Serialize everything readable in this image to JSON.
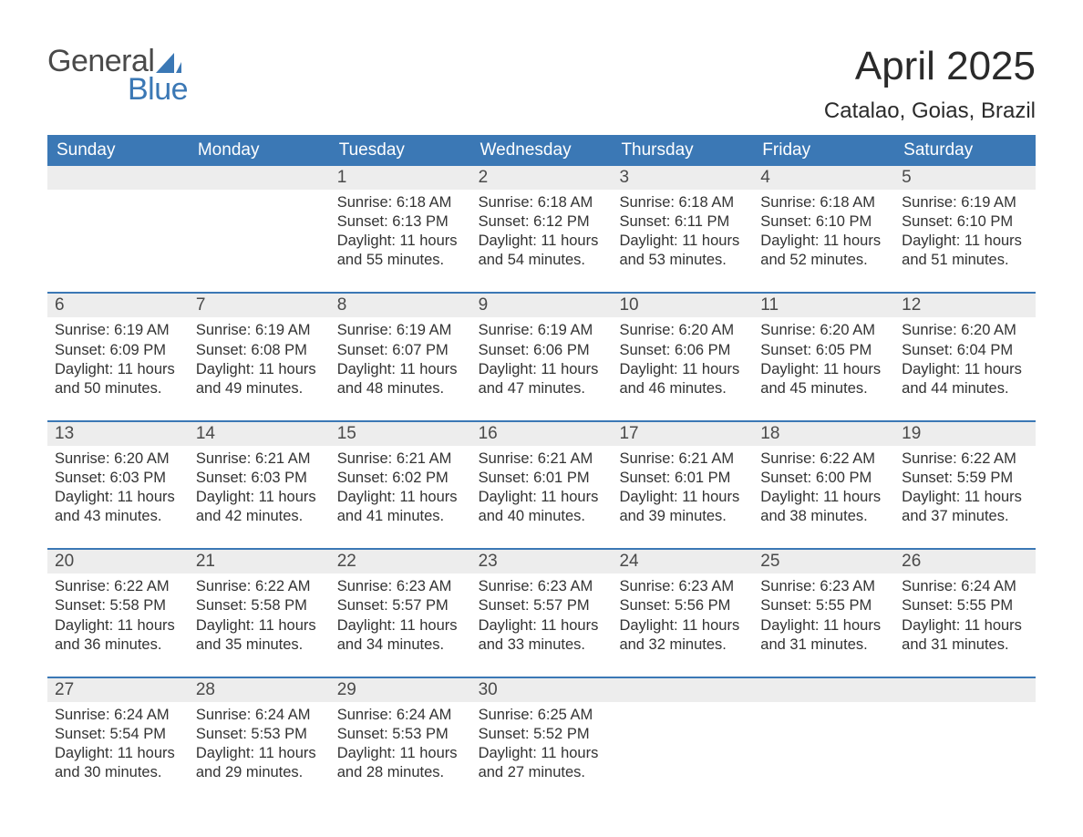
{
  "brand": {
    "word1": "General",
    "word2": "Blue",
    "text_color": "#4a4a4a",
    "accent_color": "#3b78b5",
    "sail_color": "#3b78b5"
  },
  "title": {
    "month": "April 2025",
    "location": "Catalao, Goias, Brazil",
    "month_fontsize": 44,
    "location_fontsize": 24,
    "text_color": "#2a2a2a"
  },
  "calendar": {
    "header_bg": "#3b78b5",
    "header_text_color": "#ffffff",
    "daynum_bg": "#ededed",
    "week_divider_color": "#3b78b5",
    "body_text_color": "#333333",
    "weekdays": [
      "Sunday",
      "Monday",
      "Tuesday",
      "Wednesday",
      "Thursday",
      "Friday",
      "Saturday"
    ],
    "weeks": [
      [
        {
          "day": "",
          "sunrise": "",
          "sunset": "",
          "daylight": ""
        },
        {
          "day": "",
          "sunrise": "",
          "sunset": "",
          "daylight": ""
        },
        {
          "day": "1",
          "sunrise": "Sunrise: 6:18 AM",
          "sunset": "Sunset: 6:13 PM",
          "daylight": "Daylight: 11 hours and 55 minutes."
        },
        {
          "day": "2",
          "sunrise": "Sunrise: 6:18 AM",
          "sunset": "Sunset: 6:12 PM",
          "daylight": "Daylight: 11 hours and 54 minutes."
        },
        {
          "day": "3",
          "sunrise": "Sunrise: 6:18 AM",
          "sunset": "Sunset: 6:11 PM",
          "daylight": "Daylight: 11 hours and 53 minutes."
        },
        {
          "day": "4",
          "sunrise": "Sunrise: 6:18 AM",
          "sunset": "Sunset: 6:10 PM",
          "daylight": "Daylight: 11 hours and 52 minutes."
        },
        {
          "day": "5",
          "sunrise": "Sunrise: 6:19 AM",
          "sunset": "Sunset: 6:10 PM",
          "daylight": "Daylight: 11 hours and 51 minutes."
        }
      ],
      [
        {
          "day": "6",
          "sunrise": "Sunrise: 6:19 AM",
          "sunset": "Sunset: 6:09 PM",
          "daylight": "Daylight: 11 hours and 50 minutes."
        },
        {
          "day": "7",
          "sunrise": "Sunrise: 6:19 AM",
          "sunset": "Sunset: 6:08 PM",
          "daylight": "Daylight: 11 hours and 49 minutes."
        },
        {
          "day": "8",
          "sunrise": "Sunrise: 6:19 AM",
          "sunset": "Sunset: 6:07 PM",
          "daylight": "Daylight: 11 hours and 48 minutes."
        },
        {
          "day": "9",
          "sunrise": "Sunrise: 6:19 AM",
          "sunset": "Sunset: 6:06 PM",
          "daylight": "Daylight: 11 hours and 47 minutes."
        },
        {
          "day": "10",
          "sunrise": "Sunrise: 6:20 AM",
          "sunset": "Sunset: 6:06 PM",
          "daylight": "Daylight: 11 hours and 46 minutes."
        },
        {
          "day": "11",
          "sunrise": "Sunrise: 6:20 AM",
          "sunset": "Sunset: 6:05 PM",
          "daylight": "Daylight: 11 hours and 45 minutes."
        },
        {
          "day": "12",
          "sunrise": "Sunrise: 6:20 AM",
          "sunset": "Sunset: 6:04 PM",
          "daylight": "Daylight: 11 hours and 44 minutes."
        }
      ],
      [
        {
          "day": "13",
          "sunrise": "Sunrise: 6:20 AM",
          "sunset": "Sunset: 6:03 PM",
          "daylight": "Daylight: 11 hours and 43 minutes."
        },
        {
          "day": "14",
          "sunrise": "Sunrise: 6:21 AM",
          "sunset": "Sunset: 6:03 PM",
          "daylight": "Daylight: 11 hours and 42 minutes."
        },
        {
          "day": "15",
          "sunrise": "Sunrise: 6:21 AM",
          "sunset": "Sunset: 6:02 PM",
          "daylight": "Daylight: 11 hours and 41 minutes."
        },
        {
          "day": "16",
          "sunrise": "Sunrise: 6:21 AM",
          "sunset": "Sunset: 6:01 PM",
          "daylight": "Daylight: 11 hours and 40 minutes."
        },
        {
          "day": "17",
          "sunrise": "Sunrise: 6:21 AM",
          "sunset": "Sunset: 6:01 PM",
          "daylight": "Daylight: 11 hours and 39 minutes."
        },
        {
          "day": "18",
          "sunrise": "Sunrise: 6:22 AM",
          "sunset": "Sunset: 6:00 PM",
          "daylight": "Daylight: 11 hours and 38 minutes."
        },
        {
          "day": "19",
          "sunrise": "Sunrise: 6:22 AM",
          "sunset": "Sunset: 5:59 PM",
          "daylight": "Daylight: 11 hours and 37 minutes."
        }
      ],
      [
        {
          "day": "20",
          "sunrise": "Sunrise: 6:22 AM",
          "sunset": "Sunset: 5:58 PM",
          "daylight": "Daylight: 11 hours and 36 minutes."
        },
        {
          "day": "21",
          "sunrise": "Sunrise: 6:22 AM",
          "sunset": "Sunset: 5:58 PM",
          "daylight": "Daylight: 11 hours and 35 minutes."
        },
        {
          "day": "22",
          "sunrise": "Sunrise: 6:23 AM",
          "sunset": "Sunset: 5:57 PM",
          "daylight": "Daylight: 11 hours and 34 minutes."
        },
        {
          "day": "23",
          "sunrise": "Sunrise: 6:23 AM",
          "sunset": "Sunset: 5:57 PM",
          "daylight": "Daylight: 11 hours and 33 minutes."
        },
        {
          "day": "24",
          "sunrise": "Sunrise: 6:23 AM",
          "sunset": "Sunset: 5:56 PM",
          "daylight": "Daylight: 11 hours and 32 minutes."
        },
        {
          "day": "25",
          "sunrise": "Sunrise: 6:23 AM",
          "sunset": "Sunset: 5:55 PM",
          "daylight": "Daylight: 11 hours and 31 minutes."
        },
        {
          "day": "26",
          "sunrise": "Sunrise: 6:24 AM",
          "sunset": "Sunset: 5:55 PM",
          "daylight": "Daylight: 11 hours and 31 minutes."
        }
      ],
      [
        {
          "day": "27",
          "sunrise": "Sunrise: 6:24 AM",
          "sunset": "Sunset: 5:54 PM",
          "daylight": "Daylight: 11 hours and 30 minutes."
        },
        {
          "day": "28",
          "sunrise": "Sunrise: 6:24 AM",
          "sunset": "Sunset: 5:53 PM",
          "daylight": "Daylight: 11 hours and 29 minutes."
        },
        {
          "day": "29",
          "sunrise": "Sunrise: 6:24 AM",
          "sunset": "Sunset: 5:53 PM",
          "daylight": "Daylight: 11 hours and 28 minutes."
        },
        {
          "day": "30",
          "sunrise": "Sunrise: 6:25 AM",
          "sunset": "Sunset: 5:52 PM",
          "daylight": "Daylight: 11 hours and 27 minutes."
        },
        {
          "day": "",
          "sunrise": "",
          "sunset": "",
          "daylight": ""
        },
        {
          "day": "",
          "sunrise": "",
          "sunset": "",
          "daylight": ""
        },
        {
          "day": "",
          "sunrise": "",
          "sunset": "",
          "daylight": ""
        }
      ]
    ]
  }
}
